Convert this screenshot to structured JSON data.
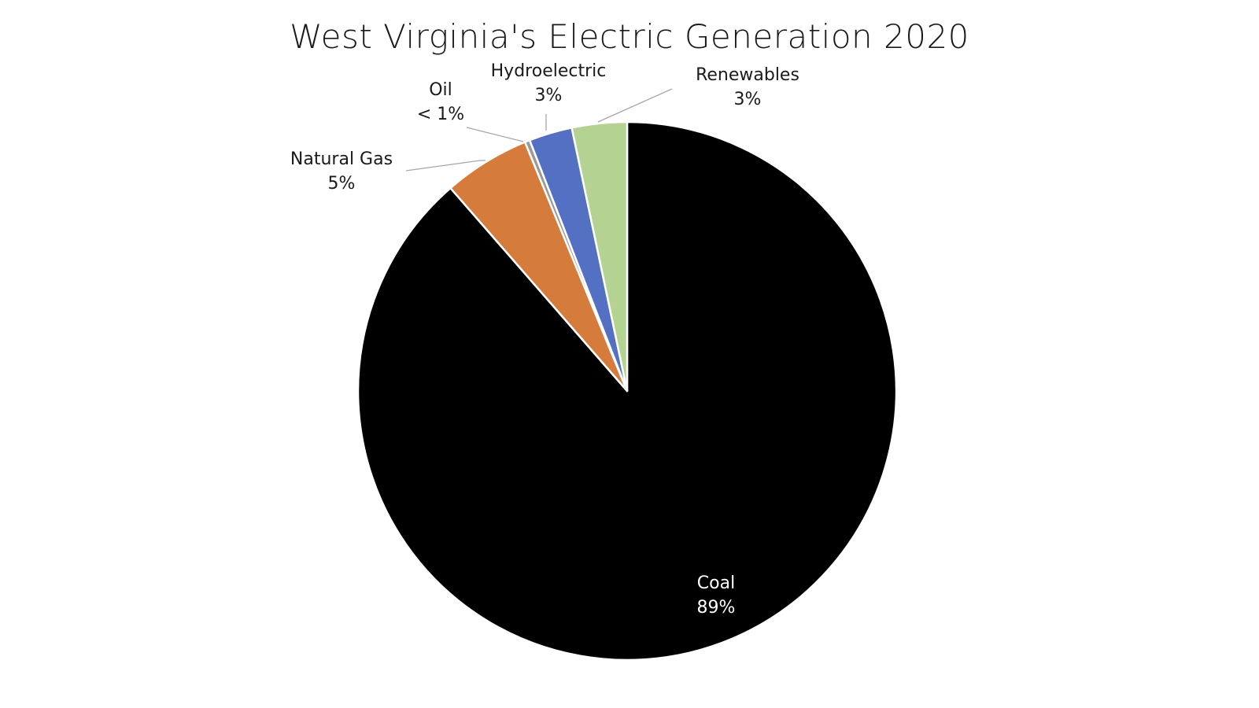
{
  "chart_data": {
    "type": "pie",
    "title": "West Virginia's Electric Generation 2020",
    "start_direction": "12 o'clock, clockwise",
    "slices": [
      {
        "category": "Coal",
        "value": 88.6,
        "label_pct": "89%",
        "color": "#000000",
        "label_color": "#ffffff",
        "label_placement": "inside"
      },
      {
        "category": "Natural Gas",
        "value": 5.2,
        "label_pct": "5%",
        "color": "#d57b3b",
        "label_color": "#1a1a1a",
        "label_placement": "outside"
      },
      {
        "category": "Oil",
        "value": 0.3,
        "label_pct": "< 1%",
        "color": "#9a9a9a",
        "label_color": "#1a1a1a",
        "label_placement": "outside"
      },
      {
        "category": "Hydroelectric",
        "value": 2.6,
        "label_pct": "3%",
        "color": "#5470c2",
        "label_color": "#1a1a1a",
        "label_placement": "outside"
      },
      {
        "category": "Renewables",
        "value": 3.3,
        "label_pct": "3%",
        "color": "#b4d291",
        "label_color": "#1a1a1a",
        "label_placement": "outside"
      }
    ]
  }
}
